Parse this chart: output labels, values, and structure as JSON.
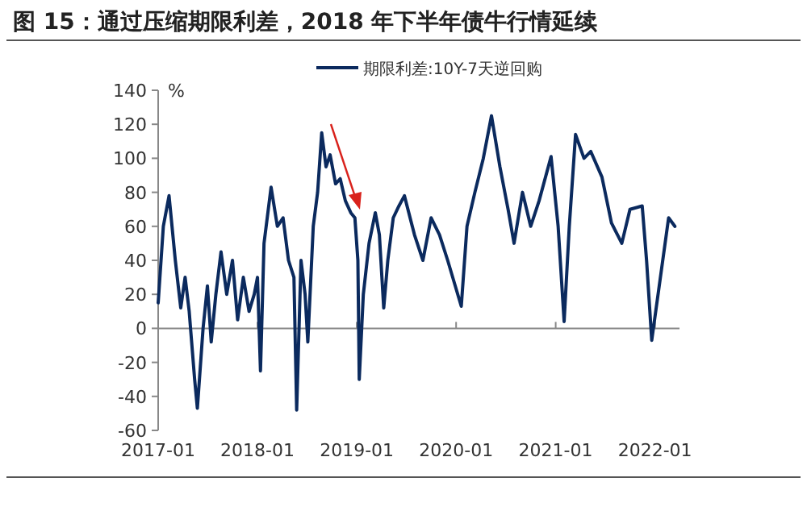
{
  "chart_data": {
    "type": "line",
    "title": "图 15：通过压缩期限利差，2018 年下半年债牛行情延续",
    "ylabel": "%",
    "legend": "top",
    "x": [
      "2017-01-01",
      "2017-01-20",
      "2017-02-10",
      "2017-03-05",
      "2017-03-25",
      "2017-04-10",
      "2017-04-25",
      "2017-05-15",
      "2017-05-25",
      "2017-06-15",
      "2017-07-01",
      "2017-07-15",
      "2017-08-01",
      "2017-08-20",
      "2017-09-10",
      "2017-10-01",
      "2017-10-20",
      "2017-11-10",
      "2017-12-01",
      "2017-12-20",
      "2018-01-01",
      "2018-01-12",
      "2018-01-25",
      "2018-02-20",
      "2018-03-15",
      "2018-04-05",
      "2018-04-25",
      "2018-05-15",
      "2018-05-25",
      "2018-06-10",
      "2018-06-25",
      "2018-07-05",
      "2018-07-25",
      "2018-08-10",
      "2018-08-25",
      "2018-09-10",
      "2018-09-25",
      "2018-10-15",
      "2018-11-01",
      "2018-11-20",
      "2018-12-10",
      "2018-12-25",
      "2019-01-05",
      "2019-01-10",
      "2019-01-25",
      "2019-02-15",
      "2019-03-10",
      "2019-03-25",
      "2019-04-10",
      "2019-04-25",
      "2019-05-15",
      "2019-06-05",
      "2019-06-25",
      "2019-08-01",
      "2019-09-01",
      "2019-10-01",
      "2019-11-01",
      "2019-12-01",
      "2020-01-20",
      "2020-02-10",
      "2020-03-10",
      "2020-04-10",
      "2020-05-10",
      "2020-06-10",
      "2020-07-10",
      "2020-08-01",
      "2020-09-01",
      "2020-10-01",
      "2020-11-01",
      "2020-12-15",
      "2021-01-10",
      "2021-02-01",
      "2021-02-20",
      "2021-03-15",
      "2021-04-15",
      "2021-05-10",
      "2021-06-20",
      "2021-07-25",
      "2021-09-01",
      "2021-10-01",
      "2021-11-15",
      "2021-12-01",
      "2021-12-20",
      "2022-01-20",
      "2022-02-20",
      "2022-03-15"
    ],
    "series": [
      {
        "name": "期限利差:10Y-7天逆回购",
        "color": "#0b2a5e",
        "values": [
          15,
          60,
          78,
          40,
          12,
          30,
          10,
          -30,
          -47,
          0,
          25,
          -8,
          20,
          45,
          20,
          40,
          5,
          30,
          10,
          20,
          30,
          -25,
          50,
          83,
          60,
          65,
          40,
          30,
          -48,
          40,
          20,
          -8,
          60,
          80,
          115,
          95,
          102,
          85,
          88,
          75,
          68,
          65,
          40,
          -30,
          20,
          50,
          68,
          55,
          12,
          40,
          65,
          72,
          78,
          55,
          40,
          65,
          55,
          40,
          13,
          60,
          80,
          100,
          125,
          95,
          70,
          50,
          80,
          60,
          75,
          101,
          60,
          4,
          60,
          114,
          100,
          104,
          89,
          62,
          50,
          70,
          72,
          40,
          -7,
          29,
          65,
          60
        ]
      }
    ],
    "xlim": [
      "2017-01-01",
      "2022-04-01"
    ],
    "ylim": [
      -60,
      140
    ],
    "yticks": [
      -60,
      -40,
      -20,
      0,
      20,
      40,
      60,
      80,
      100,
      120,
      140
    ],
    "xticks": [
      {
        "value": "2017-01-01",
        "label": "2017-01"
      },
      {
        "value": "2018-01-01",
        "label": "2018-01"
      },
      {
        "value": "2019-01-01",
        "label": "2019-01"
      },
      {
        "value": "2020-01-01",
        "label": "2020-01"
      },
      {
        "value": "2021-01-01",
        "label": "2021-01"
      },
      {
        "value": "2022-01-01",
        "label": "2022-01"
      }
    ]
  }
}
